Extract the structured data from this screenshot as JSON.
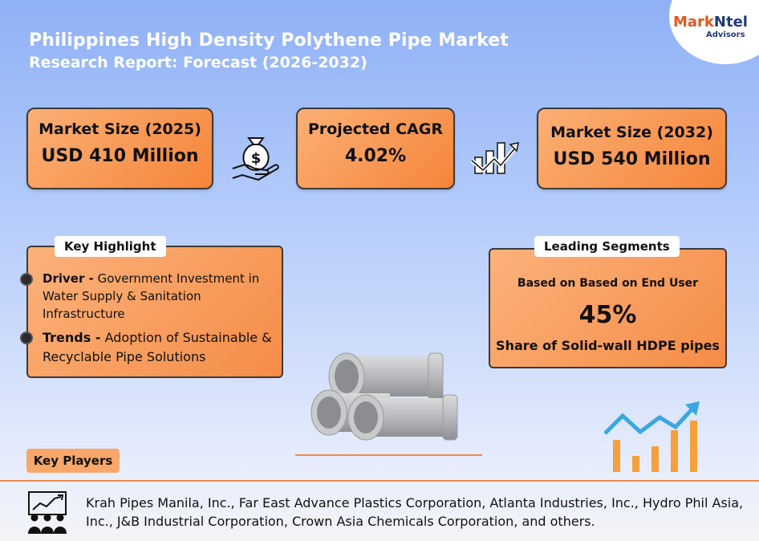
{
  "header": {
    "title": "Philippines High Density Polythene Pipe Market",
    "subtitle": "Research Report: Forecast (2026-2032)"
  },
  "logo": {
    "name_part1": "Mark",
    "name_part2": "Ntel",
    "sub": "Advisors"
  },
  "stats": {
    "market_2025": {
      "label": "Market Size (2025)",
      "value": "USD 410 Million"
    },
    "cagr": {
      "label": "Projected CAGR",
      "value": "4.02%"
    },
    "market_2032": {
      "label": "Market Size (2032)",
      "value": "USD 540 Million"
    }
  },
  "key_highlight": {
    "title": "Key Highlight",
    "driver_label": "Driver -",
    "driver_text": "Government Investment in Water Supply & Sanitation Infrastructure",
    "trends_label": "Trends -",
    "trends_text": "Adoption of Sustainable & Recyclable Pipe Solutions"
  },
  "leading_segments": {
    "title": "Leading Segments",
    "basis": "Based on Based on End User",
    "percent": "45%",
    "description": "Share of Solid-wall HDPE pipes"
  },
  "key_players": {
    "label": "Key Players",
    "text": "Krah Pipes Manila, Inc., Far East Advance Plastics Corporation, Atlanta Industries, Inc., Hydro Phil Asia, Inc., J&B Industrial Corporation, Crown Asia Chemicals Corporation, and others."
  },
  "colors": {
    "accent_orange": "#f5853a",
    "brand_blue": "#233a7a",
    "brand_orange": "#e4571c",
    "chart_blue": "#3aa7e0"
  },
  "icons": [
    "money-bag-hand-icon",
    "growth-chart-icon",
    "hdpe-pipes-icon",
    "trend-chart-icon",
    "presentation-team-icon"
  ]
}
